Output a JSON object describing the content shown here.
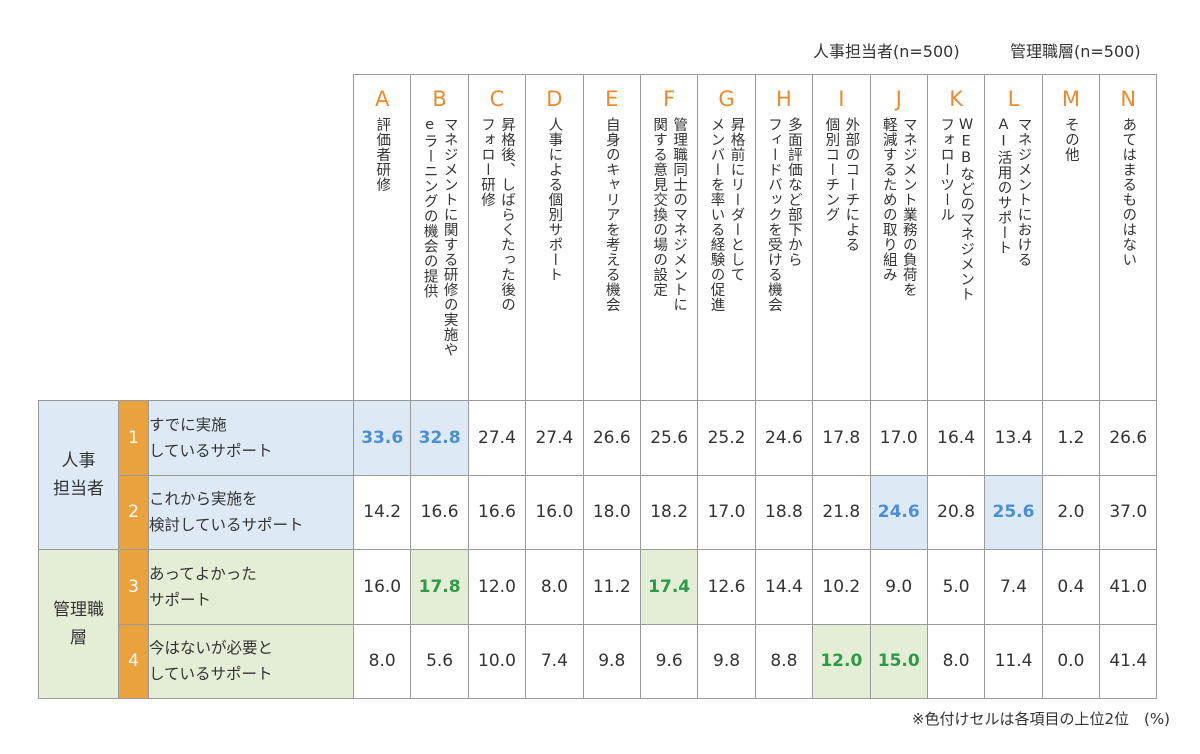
{
  "legend": {
    "hr": "人事担当者(n=500)",
    "mgr": "管理職層(n=500)"
  },
  "note": "※色付けセルは各項目の上位2位　(%)",
  "colors": {
    "accent_orange": "#ea8a2e",
    "hr_fill": "#ddeaf6",
    "hr_highlight_text": "#4a8fd6",
    "mgr_fill": "#e4eed6",
    "mgr_highlight_text": "#2e9a48",
    "num_fill": "#e9a23e"
  },
  "chart_data": {
    "type": "table",
    "unit": "%",
    "columns": [
      {
        "letter": "A",
        "label": "評価者研修"
      },
      {
        "letter": "B",
        "label": "マネジメントに関する研修の実施や\neラーニングの機会の提供"
      },
      {
        "letter": "C",
        "label": "昇格後、しばらくたった後の\nフォロー研修"
      },
      {
        "letter": "D",
        "label": "人事による個別サポート"
      },
      {
        "letter": "E",
        "label": "自身のキャリアを考える機会"
      },
      {
        "letter": "F",
        "label": "管理職同士のマネジメントに\n関する意見交換の場の設定"
      },
      {
        "letter": "G",
        "label": "昇格前にリーダーとして\nメンバーを率いる経験の促進"
      },
      {
        "letter": "H",
        "label": "多面評価など部下から\nフィードバックを受ける機会"
      },
      {
        "letter": "I",
        "label": "外部のコーチによる\n個別コーチング"
      },
      {
        "letter": "J",
        "label": "マネジメント業務の負荷を\n軽減するための取り組み"
      },
      {
        "letter": "K",
        "label": "WEBなどのマネジメント\nフォローツール"
      },
      {
        "letter": "L",
        "label": "マネジメントにおける\nAI活用のサポート"
      },
      {
        "letter": "M",
        "label": "その他"
      },
      {
        "letter": "N",
        "label": "あてはまるものはない"
      }
    ],
    "groups": [
      {
        "label": "人事\n担当者",
        "rows": [
          {
            "num": "1",
            "label": "すでに実施\nしているサポート",
            "values": [
              "33.6",
              "32.8",
              "27.4",
              "27.4",
              "26.6",
              "25.6",
              "25.2",
              "24.6",
              "17.8",
              "17.0",
              "16.4",
              "13.4",
              "1.2",
              "26.6"
            ],
            "highlight": [
              0,
              1
            ]
          },
          {
            "num": "2",
            "label": "これから実施を\n検討しているサポート",
            "values": [
              "14.2",
              "16.6",
              "16.6",
              "16.0",
              "18.0",
              "18.2",
              "17.0",
              "18.8",
              "21.8",
              "24.6",
              "20.8",
              "25.6",
              "2.0",
              "37.0"
            ],
            "highlight": [
              9,
              11
            ]
          }
        ]
      },
      {
        "label": "管理職\n層",
        "rows": [
          {
            "num": "3",
            "label": "あってよかった\nサポート",
            "values": [
              "16.0",
              "17.8",
              "12.0",
              "8.0",
              "11.2",
              "17.4",
              "12.6",
              "14.4",
              "10.2",
              "9.0",
              "5.0",
              "7.4",
              "0.4",
              "41.0"
            ],
            "highlight": [
              1,
              5
            ]
          },
          {
            "num": "4",
            "label": "今はないが必要と\nしているサポート",
            "values": [
              "8.0",
              "5.6",
              "10.0",
              "7.4",
              "9.8",
              "9.6",
              "9.8",
              "8.8",
              "12.0",
              "15.0",
              "8.0",
              "11.4",
              "0.0",
              "41.4"
            ],
            "highlight": [
              8,
              9
            ]
          }
        ]
      }
    ]
  }
}
